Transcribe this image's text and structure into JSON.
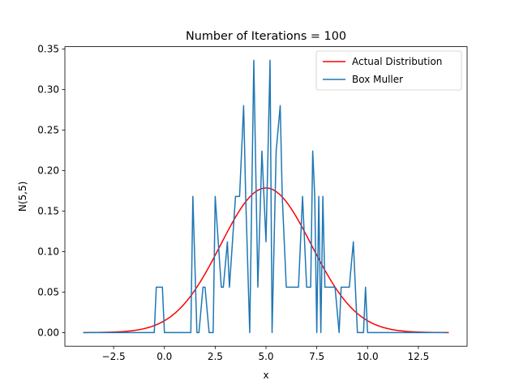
{
  "chart_data": {
    "type": "line",
    "title": "Number of Iterations = 100",
    "xlabel": "x",
    "ylabel": "N(5,5)",
    "xlim": [
      -4.9,
      14.9
    ],
    "ylim": [
      -0.0168,
      0.3528
    ],
    "x_ticks": [
      -2.5,
      0.0,
      2.5,
      5.0,
      7.5,
      10.0,
      12.5
    ],
    "x_tick_labels": [
      "−2.5",
      "0.0",
      "2.5",
      "5.0",
      "7.5",
      "10.0",
      "12.5"
    ],
    "y_ticks": [
      0.0,
      0.05,
      0.1,
      0.15,
      0.2,
      0.25,
      0.3,
      0.35
    ],
    "y_tick_labels": [
      "0.00",
      "0.05",
      "0.10",
      "0.15",
      "0.20",
      "0.25",
      "0.30",
      "0.35"
    ],
    "legend": {
      "position": "top-right"
    },
    "series": [
      {
        "name": "Actual Distribution",
        "color": "#ff0000",
        "kind": "gaussian",
        "mean": 5,
        "sd": 2.236,
        "x_range": [
          -4,
          14
        ]
      },
      {
        "name": "Box Muller",
        "color": "#1f77b4",
        "x": [
          -4.0,
          -0.5,
          -0.4,
          -0.1,
          0.0,
          1.3,
          1.4,
          1.6,
          1.7,
          1.9,
          2.0,
          2.2,
          2.4,
          2.5,
          2.8,
          2.9,
          3.1,
          3.2,
          3.5,
          3.7,
          3.9,
          4.0,
          4.2,
          4.3,
          4.4,
          4.6,
          4.8,
          4.9,
          5.0,
          5.2,
          5.3,
          5.4,
          5.5,
          5.7,
          5.8,
          6.0,
          6.1,
          6.3,
          6.5,
          6.6,
          6.8,
          7.0,
          7.2,
          7.3,
          7.4,
          7.5,
          7.6,
          7.7,
          7.8,
          7.9,
          8.0,
          8.2,
          8.4,
          8.6,
          8.7,
          8.8,
          9.1,
          9.3,
          9.5,
          9.6,
          9.8,
          9.9,
          10.0,
          10.1,
          10.2,
          11.0,
          13.9
        ],
        "y": [
          0.0,
          0.0,
          0.056,
          0.056,
          0.0,
          0.0,
          0.168,
          0.0,
          0.0,
          0.056,
          0.056,
          0.0,
          0.0,
          0.168,
          0.056,
          0.056,
          0.112,
          0.056,
          0.168,
          0.168,
          0.28,
          0.168,
          0.0,
          0.168,
          0.336,
          0.056,
          0.224,
          0.168,
          0.112,
          0.336,
          0.0,
          0.112,
          0.224,
          0.28,
          0.168,
          0.056,
          0.056,
          0.056,
          0.056,
          0.056,
          0.168,
          0.056,
          0.056,
          0.224,
          0.168,
          0.0,
          0.168,
          0.0,
          0.168,
          0.056,
          0.056,
          0.056,
          0.056,
          0.0,
          0.056,
          0.056,
          0.056,
          0.112,
          0.0,
          0.0,
          0.0,
          0.056,
          0.0,
          0.0,
          0.0,
          0.0,
          0.0
        ]
      }
    ]
  }
}
